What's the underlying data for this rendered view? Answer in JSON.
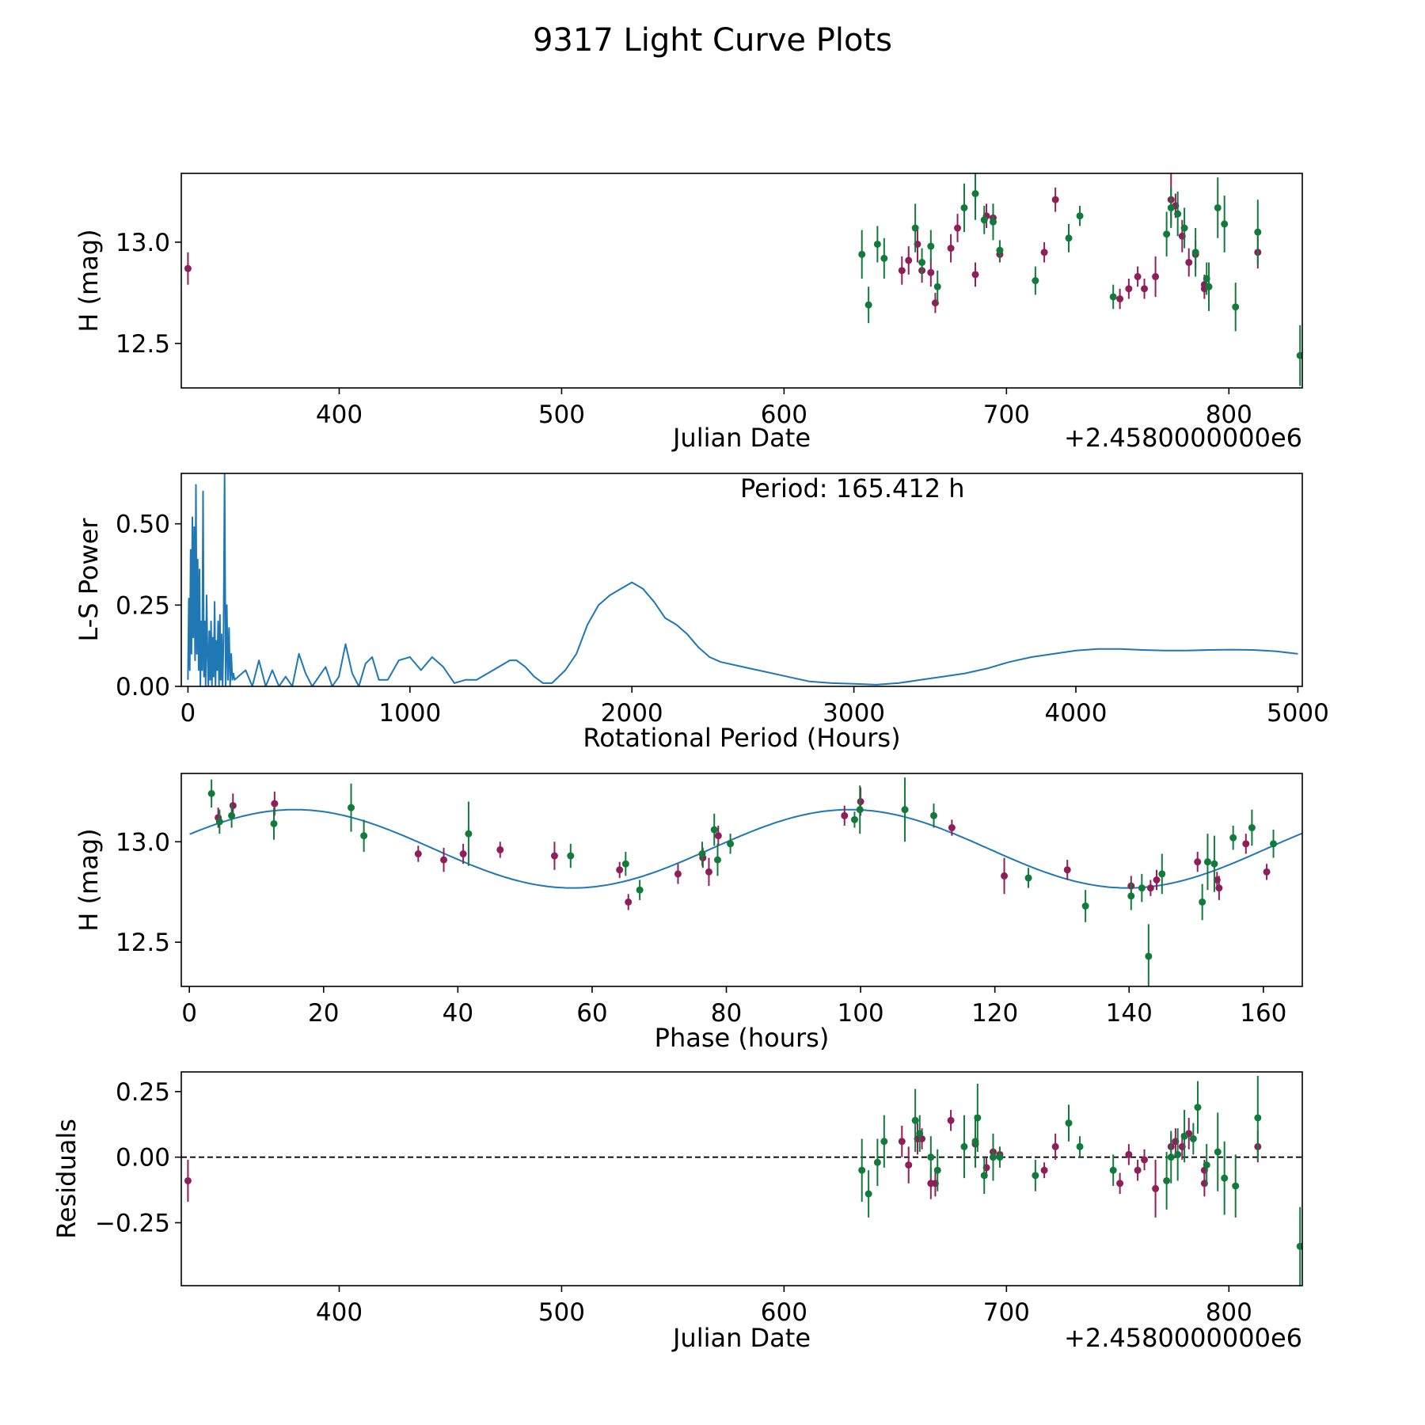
{
  "figure": {
    "title": "9317 Light Curve Plots"
  },
  "colors": {
    "magenta": "#8e1f5a",
    "green": "#127a3a",
    "curve": "#1f77b4",
    "axis": "#000000"
  },
  "chart_data": [
    {
      "id": "lightcurve",
      "type": "scatter",
      "title": "",
      "xlabel": "Julian Date",
      "ylabel": "H (mag)",
      "offset_label": "+2.4580000000e6",
      "xlim": [
        329,
        833
      ],
      "ylim": [
        12.28,
        13.34
      ],
      "xticks": [
        400,
        500,
        600,
        700,
        800
      ],
      "xtick_labels": [
        "400",
        "500",
        "600",
        "700",
        "800"
      ],
      "yticks": [
        12.5,
        13.0
      ],
      "ytick_labels": [
        "12.5",
        "13.0"
      ],
      "series": [
        {
          "name": "magenta",
          "color_key": "magenta",
          "x": [
            332,
            653,
            656,
            660,
            662,
            666,
            668,
            675,
            678,
            686,
            691,
            694,
            697,
            717,
            722,
            751,
            755,
            759,
            762,
            767,
            774,
            776,
            779,
            782,
            785,
            789,
            789,
            813
          ],
          "y": [
            12.87,
            12.86,
            12.91,
            12.99,
            12.86,
            12.85,
            12.7,
            12.97,
            13.07,
            12.84,
            13.13,
            13.12,
            12.94,
            12.95,
            13.21,
            12.72,
            12.77,
            12.83,
            12.77,
            12.83,
            13.21,
            13.18,
            13.03,
            12.9,
            12.94,
            12.77,
            12.79,
            12.95
          ],
          "err": [
            0.08,
            0.07,
            0.07,
            0.09,
            0.06,
            0.07,
            0.05,
            0.07,
            0.07,
            0.06,
            0.06,
            0.07,
            0.04,
            0.05,
            0.06,
            0.05,
            0.05,
            0.05,
            0.05,
            0.1,
            0.13,
            0.06,
            0.08,
            0.07,
            0.07,
            0.05,
            0.05,
            0.08
          ]
        },
        {
          "name": "green",
          "color_key": "green",
          "x": [
            635,
            638,
            642,
            645,
            659,
            662,
            666,
            669,
            681,
            686,
            690,
            694,
            697,
            713,
            728,
            733,
            748,
            772,
            774,
            777,
            780,
            785,
            790,
            791,
            795,
            798,
            803,
            813,
            832
          ],
          "y": [
            12.94,
            12.69,
            12.99,
            12.92,
            13.07,
            12.9,
            12.98,
            12.78,
            13.17,
            13.24,
            13.11,
            13.1,
            12.96,
            12.81,
            13.02,
            13.13,
            12.73,
            13.04,
            13.17,
            13.14,
            13.07,
            12.95,
            12.82,
            12.78,
            13.17,
            13.09,
            12.68,
            13.05,
            12.44
          ],
          "err": [
            0.12,
            0.09,
            0.09,
            0.1,
            0.12,
            0.07,
            0.08,
            0.08,
            0.12,
            0.13,
            0.07,
            0.09,
            0.05,
            0.07,
            0.07,
            0.05,
            0.06,
            0.11,
            0.1,
            0.11,
            0.1,
            0.12,
            0.08,
            0.12,
            0.15,
            0.14,
            0.12,
            0.16,
            0.15
          ]
        }
      ]
    },
    {
      "id": "periodogram",
      "type": "line",
      "title": "",
      "annotation": "Period: 165.412 h",
      "xlabel": "Rotational Period (Hours)",
      "ylabel": "L-S Power",
      "xlim": [
        -30,
        5020
      ],
      "ylim": [
        0,
        0.655
      ],
      "xticks": [
        0,
        1000,
        2000,
        3000,
        4000,
        5000
      ],
      "xtick_labels": [
        "0",
        "1000",
        "2000",
        "3000",
        "4000",
        "5000"
      ],
      "yticks": [
        0,
        0.25,
        0.5
      ],
      "ytick_labels": [
        "0.00",
        "0.25",
        "0.50"
      ],
      "smooth_curve": {
        "x": [
          210,
          260,
          290,
          320,
          350,
          380,
          410,
          440,
          470,
          500,
          530,
          560,
          590,
          620,
          650,
          680,
          710,
          740,
          770,
          800,
          830,
          860,
          900,
          950,
          1000,
          1050,
          1100,
          1150,
          1200,
          1250,
          1300,
          1350,
          1400,
          1450,
          1480,
          1520,
          1560,
          1600,
          1640,
          1700,
          1750,
          1800,
          1850,
          1900,
          1950,
          2000,
          2050,
          2100,
          2150,
          2200,
          2250,
          2300,
          2350,
          2400,
          2500,
          2600,
          2700,
          2800,
          2900,
          3000,
          3100,
          3200,
          3300,
          3400,
          3500,
          3600,
          3700,
          3800,
          3900,
          4000,
          4100,
          4200,
          4300,
          4400,
          4500,
          4600,
          4700,
          4800,
          4900,
          5000
        ],
        "y": [
          0.02,
          0.05,
          0.0,
          0.08,
          0.0,
          0.05,
          0.0,
          0.03,
          0.0,
          0.1,
          0.04,
          0.0,
          0.03,
          0.06,
          0.0,
          0.03,
          0.13,
          0.04,
          0.0,
          0.07,
          0.09,
          0.02,
          0.02,
          0.08,
          0.09,
          0.05,
          0.09,
          0.06,
          0.01,
          0.02,
          0.02,
          0.04,
          0.06,
          0.08,
          0.08,
          0.06,
          0.03,
          0.01,
          0.01,
          0.05,
          0.1,
          0.19,
          0.25,
          0.28,
          0.3,
          0.32,
          0.3,
          0.26,
          0.21,
          0.19,
          0.16,
          0.12,
          0.09,
          0.075,
          0.06,
          0.045,
          0.03,
          0.015,
          0.01,
          0.008,
          0.005,
          0.01,
          0.02,
          0.03,
          0.04,
          0.055,
          0.075,
          0.09,
          0.1,
          0.11,
          0.115,
          0.115,
          0.112,
          0.11,
          0.11,
          0.112,
          0.113,
          0.112,
          0.108,
          0.1
        ]
      },
      "spiky_curve": {
        "x": [
          0,
          4,
          8,
          12,
          16,
          20,
          24,
          28,
          32,
          36,
          40,
          44,
          48,
          52,
          56,
          60,
          64,
          68,
          72,
          76,
          80,
          84,
          88,
          92,
          96,
          100,
          104,
          108,
          112,
          116,
          120,
          124,
          128,
          132,
          136,
          140,
          144,
          148,
          152,
          156,
          160,
          165,
          170,
          175,
          180,
          185,
          190,
          195,
          200,
          205
        ],
        "y": [
          0.02,
          0.27,
          0.05,
          0.42,
          0.1,
          0.52,
          0.15,
          0.49,
          0.08,
          0.62,
          0.1,
          0.39,
          0.05,
          0.36,
          0.0,
          0.2,
          0.05,
          0.6,
          0.03,
          0.2,
          0.0,
          0.28,
          0.1,
          0.0,
          0.17,
          0.02,
          0.2,
          0.0,
          0.15,
          0.03,
          0.26,
          0.0,
          0.14,
          0.05,
          0.2,
          0.0,
          0.22,
          0.02,
          0.16,
          0.0,
          0.14,
          0.655,
          0.0,
          0.25,
          0.02,
          0.18,
          0.0,
          0.1,
          0.02,
          0.04
        ]
      }
    },
    {
      "id": "phasefold",
      "type": "scatter",
      "title": "",
      "xlabel": "Phase (hours)",
      "ylabel": "H (mag)",
      "xlim": [
        -1.2,
        165.8
      ],
      "ylim": [
        12.28,
        13.34
      ],
      "xticks": [
        0,
        20,
        40,
        60,
        80,
        100,
        120,
        140,
        160
      ],
      "xtick_labels": [
        "0",
        "20",
        "40",
        "60",
        "80",
        "100",
        "120",
        "140",
        "160"
      ],
      "yticks": [
        12.5,
        13.0
      ],
      "ytick_labels": [
        "12.5",
        "13.0"
      ],
      "model": {
        "mean": 12.965,
        "amplitude": 0.195,
        "period": 82.706,
        "peak_phase": 15.7
      },
      "series": [
        {
          "name": "magenta",
          "color_key": "magenta",
          "x": [
            4.3,
            6.5,
            12.7,
            34.1,
            37.9,
            40.8,
            46.3,
            54.4,
            64.1,
            65.4,
            72.8,
            76.5,
            77.4,
            78.8,
            97.6,
            100,
            113.6,
            121.4,
            130.8,
            140.3,
            143.2,
            144.1,
            150.2,
            153.1,
            153.4,
            157.4,
            160.5
          ],
          "y": [
            13.12,
            13.18,
            13.19,
            12.94,
            12.91,
            12.94,
            12.96,
            12.93,
            12.86,
            12.7,
            12.84,
            12.92,
            12.85,
            13.03,
            13.13,
            13.2,
            13.07,
            12.83,
            12.86,
            12.78,
            12.77,
            12.81,
            12.9,
            12.81,
            12.77,
            12.99,
            12.85
          ],
          "err": [
            0.05,
            0.06,
            0.06,
            0.04,
            0.06,
            0.05,
            0.04,
            0.07,
            0.04,
            0.04,
            0.05,
            0.05,
            0.07,
            0.05,
            0.05,
            0.07,
            0.04,
            0.09,
            0.05,
            0.05,
            0.04,
            0.05,
            0.05,
            0.04,
            0.06,
            0.05,
            0.04
          ]
        },
        {
          "name": "green",
          "color_key": "green",
          "x": [
            3.3,
            4.5,
            6.3,
            12.6,
            24.1,
            26.0,
            41.6,
            56.8,
            65.0,
            67.1,
            76.4,
            78.2,
            78.7,
            80.6,
            99.1,
            99.9,
            106.6,
            110.9,
            125.0,
            133.5,
            140.3,
            141.9,
            142.9,
            144.9,
            150.9,
            151.7,
            152.7,
            155.5,
            158.3,
            161.5
          ],
          "y": [
            13.24,
            13.1,
            13.13,
            13.09,
            13.17,
            13.03,
            13.04,
            12.93,
            12.89,
            12.76,
            12.94,
            13.06,
            12.91,
            12.99,
            13.11,
            13.16,
            13.16,
            13.13,
            12.82,
            12.68,
            12.73,
            12.77,
            12.43,
            12.84,
            12.7,
            12.9,
            12.89,
            13.02,
            13.07,
            12.99
          ],
          "err": [
            0.07,
            0.06,
            0.06,
            0.08,
            0.12,
            0.08,
            0.16,
            0.06,
            0.06,
            0.05,
            0.06,
            0.08,
            0.08,
            0.05,
            0.04,
            0.12,
            0.16,
            0.06,
            0.05,
            0.08,
            0.07,
            0.07,
            0.16,
            0.1,
            0.09,
            0.14,
            0.14,
            0.06,
            0.09,
            0.07
          ]
        }
      ]
    },
    {
      "id": "residuals",
      "type": "scatter",
      "title": "",
      "xlabel": "Julian Date",
      "ylabel": "Residuals",
      "offset_label": "+2.4580000000e6",
      "xlim": [
        329,
        833
      ],
      "ylim": [
        -0.49,
        0.325
      ],
      "xticks": [
        400,
        500,
        600,
        700,
        800
      ],
      "xtick_labels": [
        "400",
        "500",
        "600",
        "700",
        "800"
      ],
      "yticks": [
        -0.25,
        0.0,
        0.25
      ],
      "ytick_labels": [
        "−0.25",
        "0.00",
        "0.25"
      ],
      "zero_line": 0.0,
      "series": [
        {
          "name": "magenta",
          "color_key": "magenta",
          "x": [
            332,
            653,
            656,
            660,
            662,
            666,
            668,
            675,
            686,
            691,
            694,
            697,
            717,
            722,
            751,
            755,
            759,
            762,
            767,
            774,
            776,
            779,
            782,
            789,
            789,
            813
          ],
          "y": [
            -0.09,
            0.06,
            -0.03,
            0.07,
            0.07,
            -0.1,
            -0.1,
            0.14,
            0.05,
            -0.04,
            0.02,
            0.01,
            -0.05,
            0.04,
            -0.1,
            0.01,
            -0.05,
            -0.01,
            -0.12,
            0.04,
            0.06,
            0.04,
            0.09,
            -0.1,
            -0.05,
            0.04
          ],
          "err": [
            0.08,
            0.06,
            0.07,
            0.06,
            0.04,
            0.06,
            0.05,
            0.04,
            0.07,
            0.04,
            0.04,
            0.03,
            0.03,
            0.05,
            0.04,
            0.04,
            0.04,
            0.04,
            0.11,
            0.05,
            0.05,
            0.05,
            0.06,
            0.05,
            0.04,
            0.06
          ]
        },
        {
          "name": "green",
          "color_key": "green",
          "x": [
            635,
            638,
            642,
            645,
            659,
            661,
            666,
            669,
            681,
            686,
            687,
            690,
            694,
            697,
            713,
            728,
            733,
            748,
            772,
            774,
            777,
            780,
            784,
            786,
            790,
            795,
            798,
            803,
            813,
            832
          ],
          "y": [
            -0.05,
            -0.14,
            -0.02,
            0.06,
            0.14,
            0.09,
            0.0,
            -0.05,
            0.04,
            0.06,
            0.15,
            -0.07,
            0.0,
            0.0,
            -0.07,
            0.13,
            0.04,
            -0.05,
            -0.09,
            0.0,
            0.01,
            0.08,
            0.07,
            0.19,
            -0.03,
            0.02,
            -0.08,
            -0.11,
            0.15,
            -0.34
          ],
          "err": [
            0.12,
            0.09,
            0.09,
            0.1,
            0.12,
            0.07,
            0.08,
            0.08,
            0.12,
            0.1,
            0.13,
            0.07,
            0.09,
            0.04,
            0.06,
            0.07,
            0.04,
            0.06,
            0.11,
            0.1,
            0.1,
            0.1,
            0.06,
            0.1,
            0.08,
            0.15,
            0.14,
            0.12,
            0.16,
            0.15
          ]
        }
      ]
    }
  ]
}
